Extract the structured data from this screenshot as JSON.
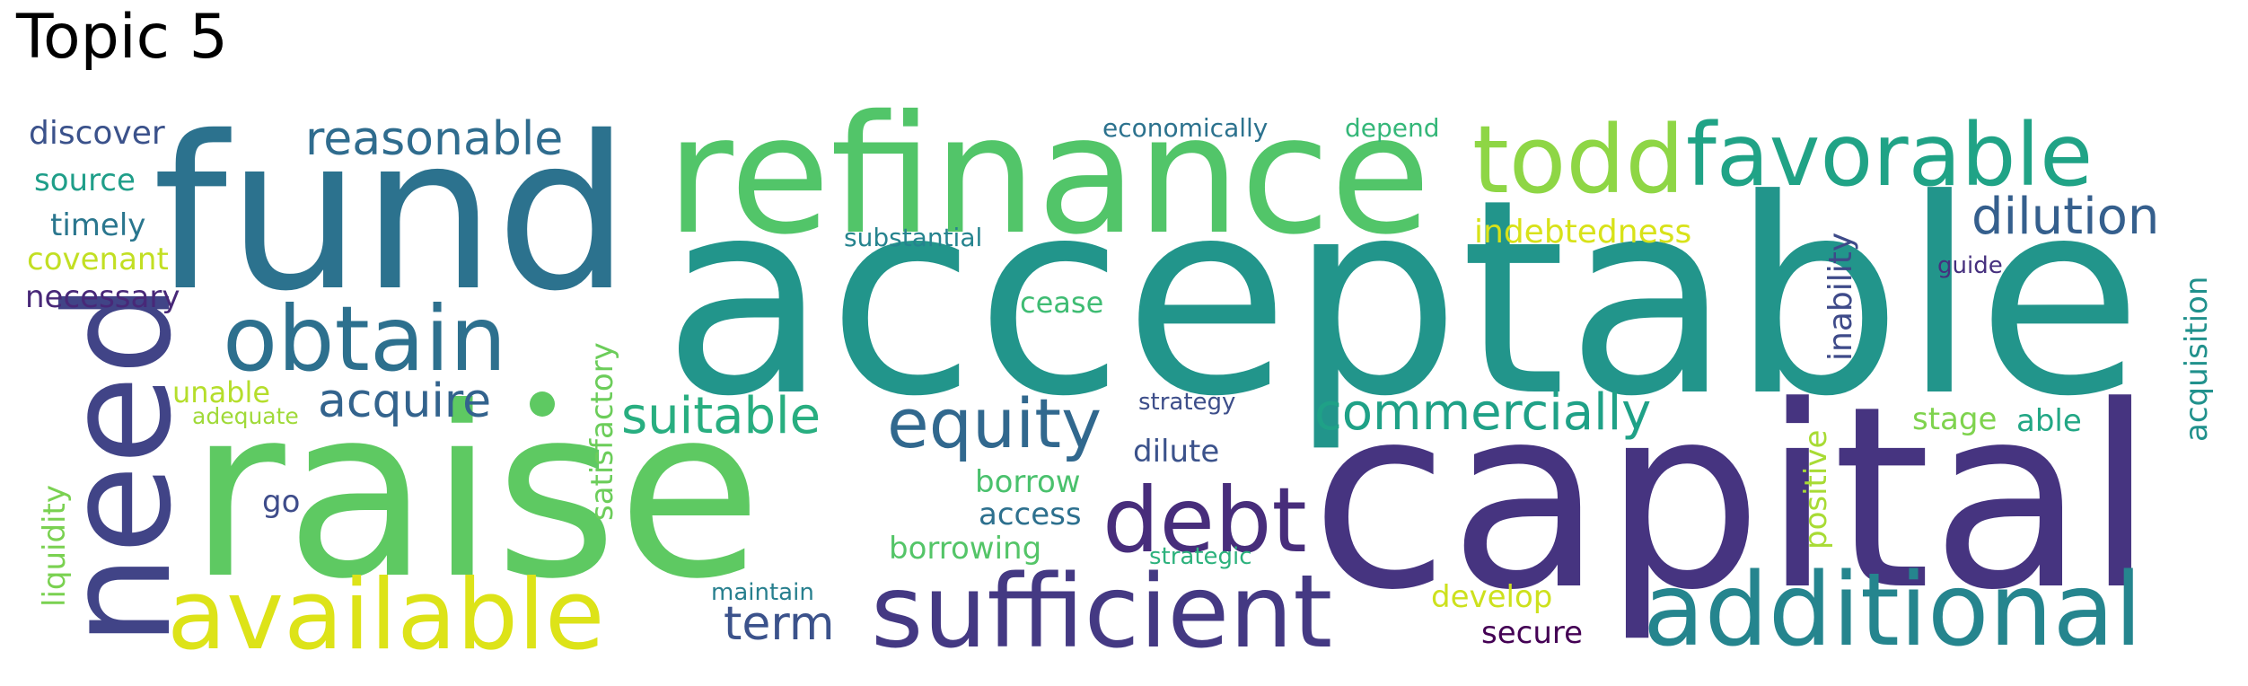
{
  "title": "Topic 5",
  "words": [
    {
      "text": "acceptable",
      "color": "#22958b"
    },
    {
      "text": "capital",
      "color": "#463480"
    },
    {
      "text": "raise",
      "color": "#5ec962"
    },
    {
      "text": "fund",
      "color": "#2c728e"
    },
    {
      "text": "refinance",
      "color": "#52c569"
    },
    {
      "text": "need",
      "color": "#414487"
    },
    {
      "text": "sufficient",
      "color": "#443983"
    },
    {
      "text": "available",
      "color": "#dde318"
    },
    {
      "text": "additional",
      "color": "#25858e"
    },
    {
      "text": "favorable",
      "color": "#20a386"
    },
    {
      "text": "todd",
      "color": "#8ed645"
    },
    {
      "text": "obtain",
      "color": "#2d708e"
    },
    {
      "text": "debt",
      "color": "#472d7b"
    },
    {
      "text": "equity",
      "color": "#31688e"
    },
    {
      "text": "reasonable",
      "color": "#2f6c8e"
    },
    {
      "text": "dilution",
      "color": "#355f8d"
    },
    {
      "text": "suitable",
      "color": "#28ae80"
    },
    {
      "text": "commercially",
      "color": "#1fa187"
    },
    {
      "text": "acquire",
      "color": "#33638d"
    },
    {
      "text": "term",
      "color": "#3b528b"
    },
    {
      "text": "satisfactory",
      "color": "#6ccd5a"
    },
    {
      "text": "indebtedness",
      "color": "#d8e219"
    },
    {
      "text": "inability",
      "color": "#3e4a89"
    },
    {
      "text": "acquisition",
      "color": "#21918c"
    },
    {
      "text": "positive",
      "color": "#a8db34"
    },
    {
      "text": "liquidity",
      "color": "#7ad151"
    },
    {
      "text": "discover",
      "color": "#3b528b"
    },
    {
      "text": "source",
      "color": "#1f9e89"
    },
    {
      "text": "timely",
      "color": "#2a768e"
    },
    {
      "text": "covenant",
      "color": "#c2df23"
    },
    {
      "text": "necessary",
      "color": "#482878"
    },
    {
      "text": "unable",
      "color": "#b5de2b"
    },
    {
      "text": "adequate",
      "color": "#a0da39"
    },
    {
      "text": "go",
      "color": "#3e4c8a"
    },
    {
      "text": "economically",
      "color": "#2c728e"
    },
    {
      "text": "depend",
      "color": "#35b779"
    },
    {
      "text": "substantial",
      "color": "#25838e"
    },
    {
      "text": "cease",
      "color": "#3fbc73"
    },
    {
      "text": "strategy",
      "color": "#3d4e8a"
    },
    {
      "text": "dilute",
      "color": "#3b528b"
    },
    {
      "text": "borrow",
      "color": "#4ac16d"
    },
    {
      "text": "access",
      "color": "#2d708e"
    },
    {
      "text": "borrowing",
      "color": "#54c568"
    },
    {
      "text": "strategic",
      "color": "#2db27d"
    },
    {
      "text": "maintain",
      "color": "#277f8e"
    },
    {
      "text": "develop",
      "color": "#cde11d"
    },
    {
      "text": "secure",
      "color": "#440154"
    },
    {
      "text": "guide",
      "color": "#46307e"
    },
    {
      "text": "stage",
      "color": "#7fd34e"
    },
    {
      "text": "able",
      "color": "#22a785"
    }
  ]
}
